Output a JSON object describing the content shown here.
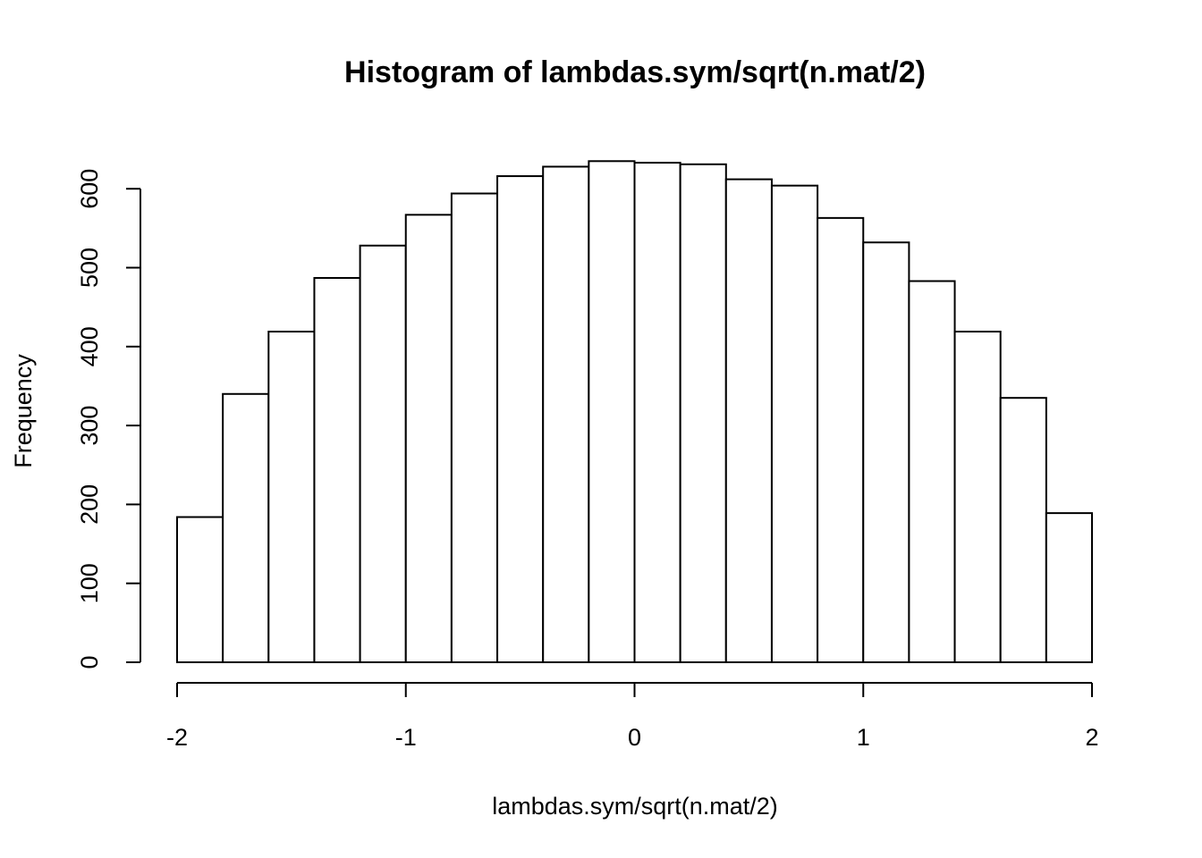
{
  "chart_data": {
    "type": "bar",
    "subtype": "histogram",
    "title": "Histogram of lambdas.sym/sqrt(n.mat/2)",
    "xlabel": "lambdas.sym/sqrt(n.mat/2)",
    "ylabel": "Frequency",
    "bin_width": 0.2,
    "bins": [
      {
        "start": -2.0,
        "end": -1.8,
        "count": 184
      },
      {
        "start": -1.8,
        "end": -1.6,
        "count": 340
      },
      {
        "start": -1.6,
        "end": -1.4,
        "count": 419
      },
      {
        "start": -1.4,
        "end": -1.2,
        "count": 487
      },
      {
        "start": -1.2,
        "end": -1.0,
        "count": 528
      },
      {
        "start": -1.0,
        "end": -0.8,
        "count": 567
      },
      {
        "start": -0.8,
        "end": -0.6,
        "count": 594
      },
      {
        "start": -0.6,
        "end": -0.4,
        "count": 616
      },
      {
        "start": -0.4,
        "end": -0.2,
        "count": 628
      },
      {
        "start": -0.2,
        "end": 0.0,
        "count": 635
      },
      {
        "start": 0.0,
        "end": 0.2,
        "count": 633
      },
      {
        "start": 0.2,
        "end": 0.4,
        "count": 631
      },
      {
        "start": 0.4,
        "end": 0.6,
        "count": 612
      },
      {
        "start": 0.6,
        "end": 0.8,
        "count": 604
      },
      {
        "start": 0.8,
        "end": 1.0,
        "count": 563
      },
      {
        "start": 1.0,
        "end": 1.2,
        "count": 532
      },
      {
        "start": 1.2,
        "end": 1.4,
        "count": 483
      },
      {
        "start": 1.4,
        "end": 1.6,
        "count": 419
      },
      {
        "start": 1.6,
        "end": 1.8,
        "count": 335
      },
      {
        "start": 1.8,
        "end": 2.0,
        "count": 189
      }
    ],
    "xlim": [
      -2,
      2
    ],
    "ylim": [
      0,
      600
    ],
    "x_ticks": [
      -2,
      -1,
      0,
      1,
      2
    ],
    "x_tick_labels": [
      "-2",
      "-1",
      "0",
      "1",
      "2"
    ],
    "y_ticks": [
      0,
      100,
      200,
      300,
      400,
      500,
      600
    ],
    "y_tick_labels": [
      "0",
      "100",
      "200",
      "300",
      "400",
      "500",
      "600"
    ],
    "grid": false,
    "legend": "none",
    "colors": {
      "bar_fill": "#ffffff",
      "bar_stroke": "#000000",
      "axis": "#000000",
      "background": "#ffffff"
    }
  }
}
